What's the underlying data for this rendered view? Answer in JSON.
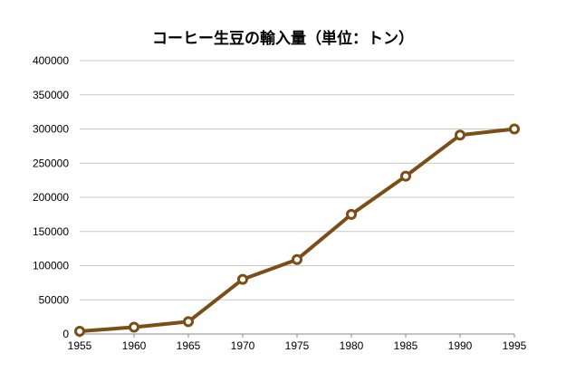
{
  "chart_data": {
    "type": "line",
    "title": "コーヒー生豆の輸入量（単位：トン）",
    "xlabel": "",
    "ylabel": "",
    "categories": [
      "1955",
      "1960",
      "1965",
      "1970",
      "1975",
      "1980",
      "1985",
      "1990",
      "1995"
    ],
    "series": [
      {
        "values": [
          4000,
          10000,
          18000,
          80000,
          109000,
          175000,
          231000,
          291000,
          300000
        ]
      }
    ],
    "ylim": [
      0,
      400000
    ],
    "yticks": [
      "0",
      "50000",
      "100000",
      "150000",
      "200000",
      "250000",
      "300000",
      "350000",
      "400000"
    ],
    "grid": true,
    "legend": "none",
    "colors": {
      "line": "#7a4e17",
      "marker_fill": "#ffffff",
      "grid": "#c8c8c8",
      "axis": "#888888"
    }
  }
}
